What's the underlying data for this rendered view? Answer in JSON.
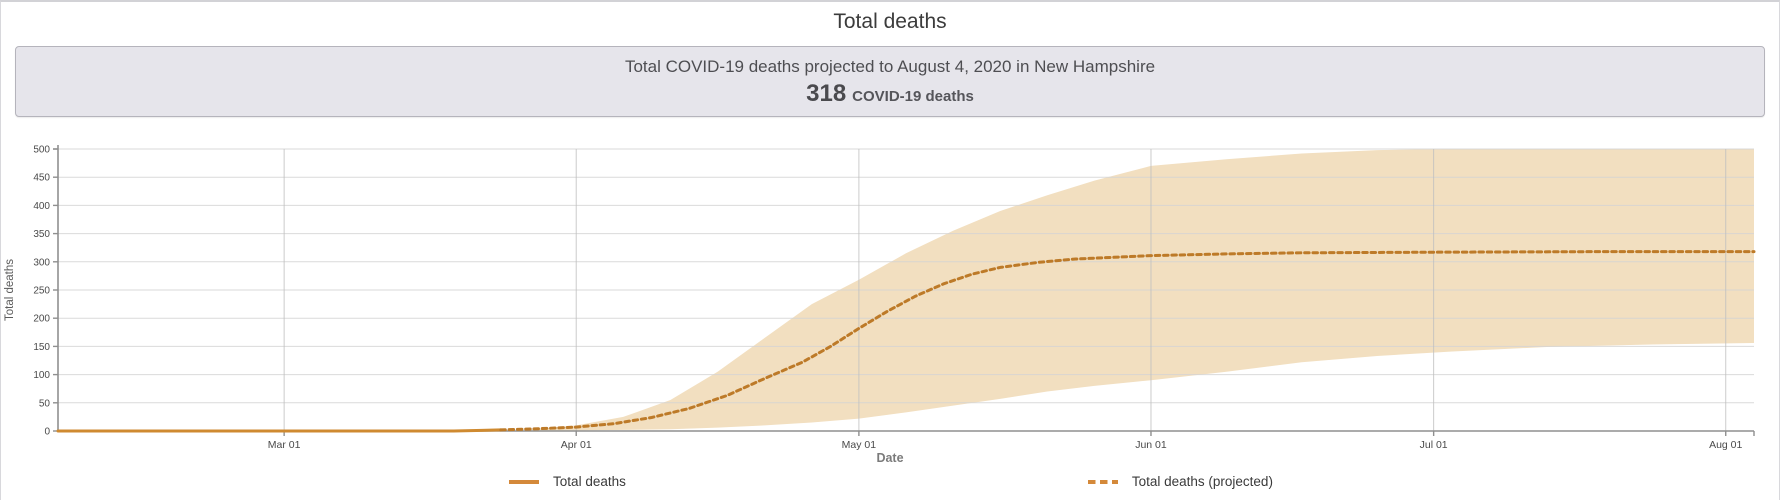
{
  "page": {
    "title": "Total deaths"
  },
  "summary_box": {
    "line1": "Total COVID-19 deaths projected to August 4, 2020 in New Hampshire",
    "value": "318",
    "value_label": "COVID-19 deaths",
    "bg_color": "#e6e5eb",
    "border_color": "#b5b4bc"
  },
  "chart_data": {
    "type": "line",
    "title": "Total deaths",
    "xlabel": "Date",
    "ylabel": "Total deaths",
    "ylim": [
      0,
      500
    ],
    "y_ticks": [
      0,
      50,
      100,
      150,
      200,
      250,
      300,
      350,
      400,
      450,
      500
    ],
    "x_domain_days": [
      0,
      180
    ],
    "x_domain_note": "day 0 = Feb 6 2020, day 180 = Aug 4 2020",
    "x_ticks": [
      {
        "day": 24,
        "label": "Mar 01"
      },
      {
        "day": 55,
        "label": "Apr 01"
      },
      {
        "day": 85,
        "label": "May 01"
      },
      {
        "day": 116,
        "label": "Jun 01"
      },
      {
        "day": 146,
        "label": "Jul 01"
      },
      {
        "day": 177,
        "label": "Aug 01"
      }
    ],
    "grid": true,
    "colors": {
      "solid_line": "#cf8a30",
      "dashed_line": "#bd7a28",
      "band": "#f2dfc0",
      "grid_h": "#d4d4d4",
      "grid_v": "#bfbfbf",
      "axis": "#8f8f8f"
    },
    "band": {
      "name": "uncertainty-interval",
      "color": "#f2dfc0",
      "points_day_lo_hi": [
        [
          50,
          1,
          2
        ],
        [
          55,
          1,
          10
        ],
        [
          60,
          2,
          25
        ],
        [
          65,
          3,
          55
        ],
        [
          70,
          6,
          105
        ],
        [
          75,
          10,
          165
        ],
        [
          80,
          15,
          225
        ],
        [
          85,
          22,
          268
        ],
        [
          90,
          33,
          315
        ],
        [
          95,
          45,
          355
        ],
        [
          100,
          57,
          390
        ],
        [
          105,
          70,
          418
        ],
        [
          110,
          80,
          444
        ],
        [
          116,
          90,
          470
        ],
        [
          124,
          105,
          482
        ],
        [
          132,
          122,
          492
        ],
        [
          140,
          133,
          498
        ],
        [
          148,
          141,
          502
        ],
        [
          158,
          149,
          506
        ],
        [
          168,
          153,
          508
        ],
        [
          180,
          156,
          510
        ]
      ]
    },
    "series": [
      {
        "name": "Total deaths",
        "style": "solid",
        "color": "#cf8a30",
        "points_day_value": [
          [
            0,
            0
          ],
          [
            35,
            0
          ],
          [
            42,
            0
          ],
          [
            45,
            1
          ],
          [
            47,
            2
          ]
        ]
      },
      {
        "name": "Total deaths (projected)",
        "style": "dashed",
        "color": "#bd7a28",
        "points_day_value": [
          [
            47,
            2
          ],
          [
            51,
            4
          ],
          [
            55,
            7
          ],
          [
            59,
            13
          ],
          [
            63,
            24
          ],
          [
            67,
            40
          ],
          [
            71,
            63
          ],
          [
            75,
            93
          ],
          [
            79,
            122
          ],
          [
            82,
            150
          ],
          [
            85,
            182
          ],
          [
            88,
            212
          ],
          [
            91,
            239
          ],
          [
            94,
            261
          ],
          [
            97,
            278
          ],
          [
            100,
            290
          ],
          [
            104,
            299
          ],
          [
            108,
            305
          ],
          [
            112,
            308
          ],
          [
            116,
            311
          ],
          [
            124,
            314
          ],
          [
            132,
            316
          ],
          [
            146,
            317
          ],
          [
            165,
            318
          ],
          [
            180,
            318
          ]
        ]
      }
    ],
    "legend": [
      {
        "label": "Total deaths",
        "style": "solid"
      },
      {
        "label": "Total deaths (projected)",
        "style": "dashed"
      }
    ],
    "legend_position": "bottom"
  }
}
